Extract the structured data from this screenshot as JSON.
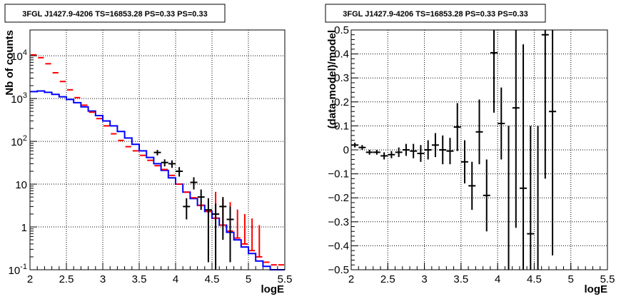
{
  "chart_data": [
    {
      "type": "histogram",
      "title": "3FGL J1427.9-4206 TS=16853.28 PS=0.33 PS=0.33",
      "xlabel": "logE",
      "ylabel": "Nb of counts",
      "xlim": [
        2,
        5.5
      ],
      "ylim": [
        0.1,
        40000
      ],
      "y_scale": "log",
      "grid": true,
      "x_ticks": [
        "2",
        "2.5",
        "3",
        "3.5",
        "4",
        "4.5",
        "5",
        "5.5"
      ],
      "y_ticks": [
        "10^-1",
        "1",
        "10",
        "10^2",
        "10^3",
        "10^4"
      ],
      "bin_edges": [
        2.0,
        2.1,
        2.2,
        2.3,
        2.4,
        2.5,
        2.6,
        2.7,
        2.8,
        2.9,
        3.0,
        3.1,
        3.2,
        3.3,
        3.4,
        3.5,
        3.6,
        3.7,
        3.8,
        3.9,
        4.0,
        4.1,
        4.2,
        4.3,
        4.4,
        4.5,
        4.6,
        4.7,
        4.8,
        4.9,
        5.0,
        5.1,
        5.2,
        5.3,
        5.4,
        5.5
      ],
      "series": [
        {
          "role": "blue-step",
          "color": "#0000ff",
          "values": [
            1450,
            1500,
            1400,
            1250,
            1100,
            950,
            800,
            640,
            510,
            400,
            300,
            230,
            170,
            120,
            85,
            60,
            42,
            30,
            21,
            14,
            10,
            6.5,
            4.6,
            3.2,
            2.3,
            1.6,
            1.1,
            0.75,
            0.5,
            0.34,
            0.24,
            0.16,
            0.12,
            0.1,
            0.1
          ]
        },
        {
          "role": "red-markers",
          "color": "#ff0000",
          "values": [
            10500,
            9000,
            6500,
            4000,
            2500,
            1600,
            1050,
            700,
            480,
            340,
            230,
            150,
            105,
            75,
            60,
            47,
            36,
            27,
            22,
            16,
            10,
            6.5,
            4.8,
            3.2,
            2.3,
            1.6,
            1.1,
            0.8,
            0.55,
            0.4,
            0.28,
            0.2,
            0.15,
            0.13,
            0.13
          ],
          "err_low": [
            0,
            0,
            0,
            0,
            0,
            0,
            0,
            0,
            0,
            0,
            0,
            0,
            0,
            0,
            0,
            0,
            0,
            0,
            0,
            0,
            0,
            0,
            0,
            0,
            0,
            0.0001,
            0.0001,
            0.0001,
            0.0001,
            0.0001,
            0.0001,
            0.0001,
            0,
            0,
            0
          ],
          "err_high": [
            0,
            0,
            0,
            0,
            0,
            0,
            0,
            0,
            0,
            0,
            0,
            0,
            0,
            0,
            0,
            0,
            0,
            0,
            0,
            0,
            0,
            0,
            0,
            0,
            0,
            5,
            3.5,
            3.0,
            2.0,
            1.6,
            1.3,
            0.9,
            0,
            0,
            0
          ]
        },
        {
          "role": "black-data",
          "color": "#000000",
          "x": [
            3.75,
            3.85,
            3.95,
            4.05,
            4.15,
            4.25,
            4.35,
            4.45,
            4.55,
            4.65,
            4.75
          ],
          "values": [
            55,
            32,
            30,
            20,
            3,
            11,
            5,
            2.5,
            2,
            3,
            1.5
          ],
          "err_low": [
            8,
            6,
            6,
            5,
            1.5,
            3.5,
            2.5,
            2.35,
            1.9,
            2.5,
            1.35
          ],
          "err_high": [
            8,
            6,
            6,
            5,
            1.7,
            3.5,
            2.5,
            2.2,
            1.5,
            2.0,
            1.5
          ]
        }
      ]
    },
    {
      "type": "scatter",
      "title": "3FGL J1427.9-4206 TS=16853.28 PS=0.33 PS=0.33",
      "xlabel": "logE",
      "ylabel": "(data-model)/model",
      "xlim": [
        2,
        5.5
      ],
      "ylim": [
        -0.5,
        0.5
      ],
      "grid": true,
      "x_ticks": [
        "2",
        "2.5",
        "3",
        "3.5",
        "4",
        "4.5",
        "5",
        "5.5"
      ],
      "y_ticks": [
        "−0.5",
        "−0.4",
        "−0.3",
        "−0.2",
        "−0.1",
        "0",
        "0.1",
        "0.2",
        "0.3",
        "0.4",
        "0.5"
      ],
      "points": {
        "x": [
          2.05,
          2.15,
          2.25,
          2.35,
          2.45,
          2.55,
          2.65,
          2.75,
          2.85,
          2.95,
          3.05,
          3.15,
          3.25,
          3.35,
          3.45,
          3.55,
          3.65,
          3.75,
          3.85,
          3.95,
          4.05,
          4.15,
          4.25,
          4.35,
          4.45,
          4.55,
          4.65,
          4.75
        ],
        "y": [
          0.02,
          0.01,
          -0.01,
          -0.01,
          -0.025,
          -0.02,
          -0.01,
          0.0,
          -0.005,
          -0.015,
          0.0,
          0.02,
          0.0,
          -0.005,
          0.095,
          -0.05,
          -0.15,
          0.075,
          -0.19,
          0.405,
          0.11,
          -0.5,
          0.175,
          -0.16,
          -0.35,
          -0.5,
          0.48,
          0.16
        ],
        "err": [
          0.01,
          0.01,
          0.01,
          0.01,
          0.015,
          0.015,
          0.02,
          0.025,
          0.03,
          0.035,
          0.04,
          0.05,
          0.06,
          0.055,
          0.1,
          0.09,
          0.1,
          0.135,
          0.15,
          0.25,
          0.15,
          0.6,
          0.5,
          0.6,
          0.45,
          0.6,
          0.6,
          0.6
        ]
      }
    }
  ]
}
